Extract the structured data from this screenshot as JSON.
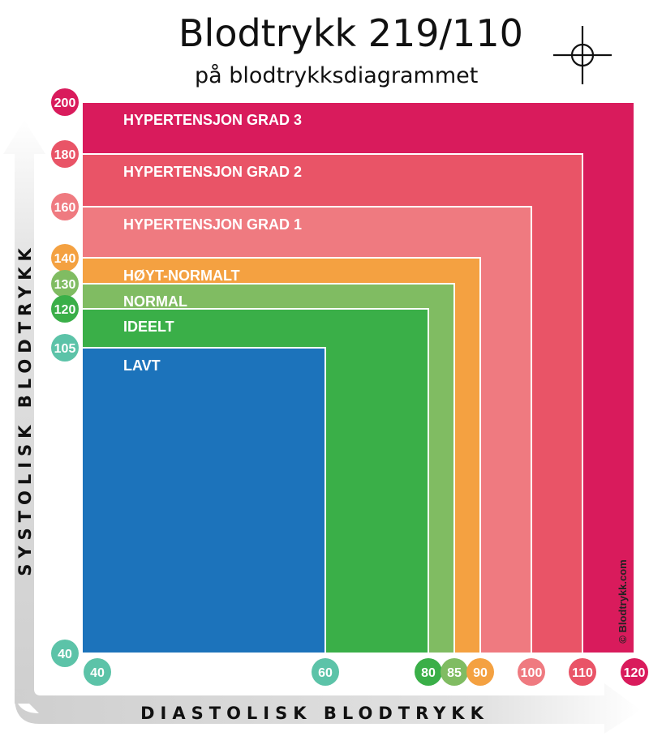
{
  "title": "Blodtrykk 219/110",
  "subtitle": "på blodtrykksdiagrammet",
  "credit": "© Blodtrykk.com",
  "chart_data": {
    "type": "zone-chart",
    "xlabel": "DIASTOLISK BLODTRYKK",
    "ylabel": "SYSTOLISK BLODTRYKK",
    "x_ticks": [
      {
        "value": 40,
        "label": "40",
        "color": "#5cc3a8"
      },
      {
        "value": 60,
        "label": "60",
        "color": "#5cc3a8"
      },
      {
        "value": 80,
        "label": "80",
        "color": "#3aaf48"
      },
      {
        "value": 85,
        "label": "85",
        "color": "#80bc62"
      },
      {
        "value": 90,
        "label": "90",
        "color": "#f4a141"
      },
      {
        "value": 100,
        "label": "100",
        "color": "#ef7a80"
      },
      {
        "value": 110,
        "label": "110",
        "color": "#e95467"
      },
      {
        "value": 120,
        "label": "120",
        "color": "#d91b5c"
      }
    ],
    "y_ticks": [
      {
        "value": 200,
        "label": "200",
        "color": "#d91b5c"
      },
      {
        "value": 180,
        "label": "180",
        "color": "#e95467"
      },
      {
        "value": 160,
        "label": "160",
        "color": "#ef7a80"
      },
      {
        "value": 140,
        "label": "140",
        "color": "#f4a141"
      },
      {
        "value": 130,
        "label": "130",
        "color": "#80bc62"
      },
      {
        "value": 120,
        "label": "120",
        "color": "#3aaf48"
      },
      {
        "value": 105,
        "label": "105",
        "color": "#5cc3a8"
      },
      {
        "value": 40,
        "label": "40",
        "color": "#5cc3a8"
      }
    ],
    "zones": [
      {
        "name": "HYPERTENSJON GRAD 3",
        "x_max": 120,
        "y_max": 200,
        "color": "#d91b5c"
      },
      {
        "name": "HYPERTENSJON GRAD 2",
        "x_max": 110,
        "y_max": 180,
        "color": "#e95467"
      },
      {
        "name": "HYPERTENSJON GRAD 1",
        "x_max": 100,
        "y_max": 160,
        "color": "#ef7a80"
      },
      {
        "name": "HØYT-NORMALT",
        "x_max": 90,
        "y_max": 140,
        "color": "#f4a141"
      },
      {
        "name": "NORMAL",
        "x_max": 85,
        "y_max": 130,
        "color": "#80bc62"
      },
      {
        "name": "IDEELT",
        "x_max": 80,
        "y_max": 120,
        "color": "#3aaf48"
      },
      {
        "name": "LAVT",
        "x_max": 60,
        "y_max": 105,
        "color": "#1c73bb"
      }
    ],
    "marker": {
      "systolic": 219,
      "diastolic": 110
    }
  }
}
